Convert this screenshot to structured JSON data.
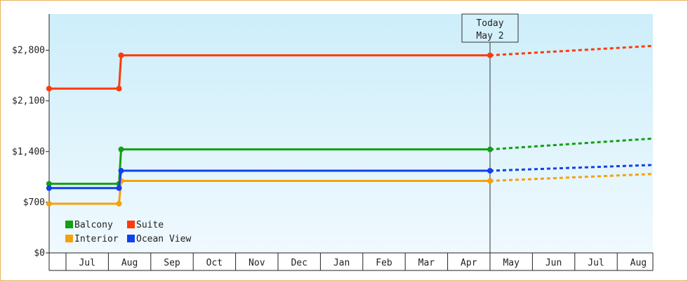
{
  "chart_data": {
    "type": "line",
    "title": "",
    "xlabel": "",
    "ylabel": "",
    "y_ticks": [
      {
        "value": 0,
        "label": "$0"
      },
      {
        "value": 700,
        "label": "$700"
      },
      {
        "value": 1400,
        "label": "$1,400"
      },
      {
        "value": 2100,
        "label": "$2,100"
      },
      {
        "value": 2800,
        "label": "$2,800"
      }
    ],
    "ylim": [
      0,
      3300
    ],
    "months": [
      "Jul",
      "Aug",
      "Sep",
      "Oct",
      "Nov",
      "Dec",
      "Jan",
      "Feb",
      "Mar",
      "Apr",
      "May",
      "Jun",
      "Jul",
      "Aug"
    ],
    "today": {
      "line1": "Today",
      "line2": "May 2"
    },
    "legend": {
      "position": "bottom-left"
    },
    "series": [
      {
        "name": "Balcony",
        "color": "#11a011",
        "points": [
          {
            "m": -0.4,
            "v": 955
          },
          {
            "m": 1.25,
            "v": 955
          },
          {
            "m": 1.3,
            "v": 1430
          },
          {
            "m": 10.0,
            "v": 1430
          }
        ],
        "forecast": [
          {
            "m": 10.0,
            "v": 1430
          },
          {
            "m": 14.6,
            "v": 1580
          }
        ]
      },
      {
        "name": "Suite",
        "color": "#ff3a0a",
        "points": [
          {
            "m": -0.4,
            "v": 2270
          },
          {
            "m": 1.25,
            "v": 2270
          },
          {
            "m": 1.3,
            "v": 2730
          },
          {
            "m": 10.0,
            "v": 2730
          }
        ],
        "forecast": [
          {
            "m": 10.0,
            "v": 2730
          },
          {
            "m": 14.6,
            "v": 2860
          }
        ]
      },
      {
        "name": "Interior",
        "color": "#f5a10b",
        "points": [
          {
            "m": -0.4,
            "v": 680
          },
          {
            "m": 1.25,
            "v": 680
          },
          {
            "m": 1.3,
            "v": 995
          },
          {
            "m": 10.0,
            "v": 995
          }
        ],
        "forecast": [
          {
            "m": 10.0,
            "v": 995
          },
          {
            "m": 14.6,
            "v": 1090
          }
        ]
      },
      {
        "name": "Ocean View",
        "color": "#1040ee",
        "points": [
          {
            "m": -0.4,
            "v": 895
          },
          {
            "m": 1.25,
            "v": 895
          },
          {
            "m": 1.3,
            "v": 1135
          },
          {
            "m": 10.0,
            "v": 1135
          }
        ],
        "forecast": [
          {
            "m": 10.0,
            "v": 1135
          },
          {
            "m": 14.6,
            "v": 1215
          }
        ]
      }
    ]
  }
}
